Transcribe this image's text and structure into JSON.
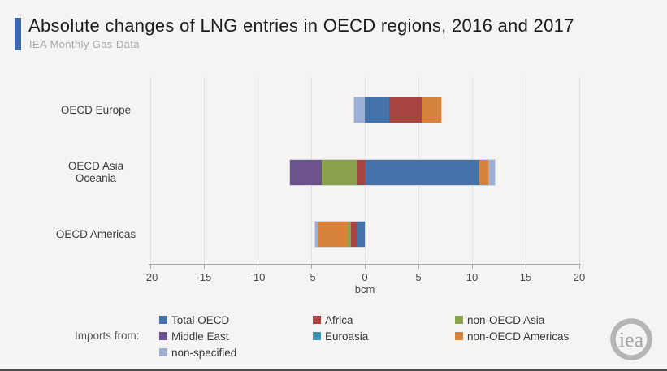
{
  "header": {
    "title": "Absolute changes of LNG entries in OECD regions, 2016 and 2017",
    "subtitle": "IEA Monthly Gas Data",
    "accent_color": "#3a67ad"
  },
  "chart_data": {
    "type": "bar",
    "orientation": "horizontal",
    "stacked": true,
    "title": "Absolute changes of LNG entries in OECD regions, 2016 and 2017",
    "categories": [
      "OECD Europe",
      "OECD Asia Oceania",
      "OECD Americas"
    ],
    "series": [
      {
        "name": "Total OECD",
        "color": "#4573a9",
        "values": [
          2.3,
          10.7,
          -0.7
        ]
      },
      {
        "name": "Africa",
        "color": "#a84441",
        "values": [
          3.0,
          -0.7,
          -0.6
        ]
      },
      {
        "name": "non-OECD Asia",
        "color": "#8ba24d",
        "values": [
          0,
          -3.3,
          -0.3
        ]
      },
      {
        "name": "Middle East",
        "color": "#6d548e",
        "values": [
          0,
          -3.0,
          0
        ]
      },
      {
        "name": "Euroasia",
        "color": "#3f92ad",
        "values": [
          0,
          0,
          0
        ]
      },
      {
        "name": "non-OECD Americas",
        "color": "#d8833b",
        "values": [
          1.8,
          0.8,
          -2.8
        ]
      },
      {
        "name": "non-specified",
        "color": "#9dafd6",
        "values": [
          -1.0,
          0.6,
          -0.2
        ]
      }
    ],
    "xlabel": "bcm",
    "xlim": [
      -20,
      20
    ],
    "xticks": [
      -20,
      -15,
      -10,
      -5,
      0,
      5,
      10,
      15,
      20
    ],
    "grid": true,
    "legend_position": "bottom"
  },
  "legend": {
    "label": "Imports from:",
    "columns": [
      [
        "Total OECD",
        "Middle East",
        "non-specified"
      ],
      [
        "Africa",
        "Euroasia"
      ],
      [
        "non-OECD Asia",
        "non-OECD Americas"
      ]
    ]
  },
  "logo": {
    "text": "iea"
  },
  "colors": {
    "background": "#f5f4f3",
    "gridline": "#e3e2e0",
    "axis": "#a9a9a9",
    "footer_bar": "#4c4c4c"
  }
}
